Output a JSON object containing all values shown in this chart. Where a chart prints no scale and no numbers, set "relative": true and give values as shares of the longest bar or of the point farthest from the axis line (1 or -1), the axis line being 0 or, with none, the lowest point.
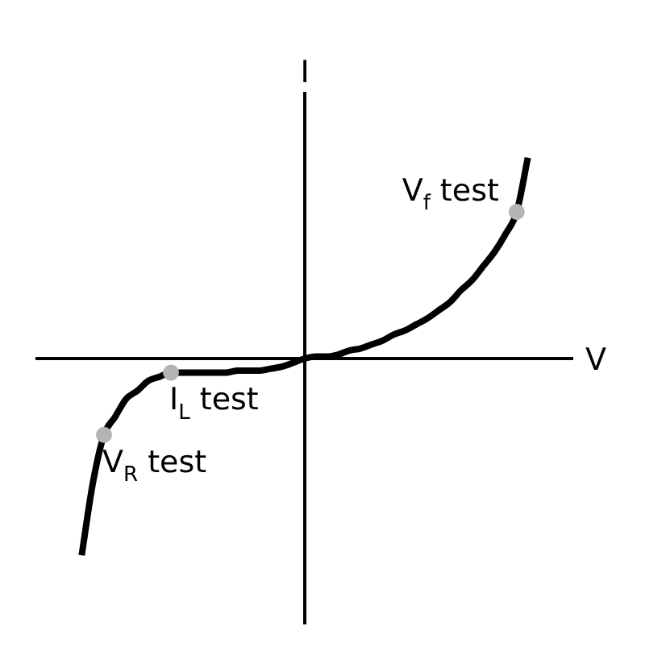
{
  "chart_data": {
    "type": "line",
    "relative": true,
    "xlabel": "V",
    "ylabel": "I",
    "categories": [
      null,
      null,
      null,
      null,
      null,
      null,
      null,
      null,
      null,
      null,
      null,
      null,
      null,
      null,
      null,
      null,
      null,
      null,
      null,
      null,
      null,
      null,
      null,
      null,
      null,
      null,
      null,
      null,
      null,
      null,
      null,
      null,
      null,
      null,
      null,
      null,
      null,
      null,
      null,
      null,
      null,
      null,
      null,
      null,
      null,
      null,
      null,
      null,
      null
    ],
    "series": [
      {
        "color": "#000000",
        "marker": "none",
        "values": [
          null,
          null,
          null,
          null,
          -0.98,
          -0.62,
          -0.38,
          -0.29,
          -0.2,
          -0.16,
          -0.11,
          -0.09,
          -0.07,
          -0.07,
          -0.07,
          -0.07,
          -0.07,
          -0.07,
          -0.06,
          -0.06,
          -0.06,
          -0.05,
          -0.04,
          -0.02,
          0,
          0.01,
          0.01,
          0.02,
          0.04,
          0.05,
          0.07,
          0.09,
          0.12,
          0.14,
          0.17,
          0.2,
          0.24,
          0.28,
          0.34,
          0.39,
          0.46,
          0.53,
          0.62,
          0.73,
          1,
          null,
          null,
          null,
          null
        ]
      },
      {
        "name": "V$_{f}$ test",
        "color": "#b4b4b4",
        "marker": "circle",
        "values": [
          null,
          null,
          null,
          null,
          null,
          null,
          null,
          null,
          null,
          null,
          null,
          null,
          null,
          null,
          null,
          null,
          null,
          null,
          null,
          null,
          null,
          null,
          null,
          null,
          null,
          null,
          null,
          null,
          null,
          null,
          null,
          null,
          null,
          null,
          null,
          null,
          null,
          null,
          null,
          null,
          null,
          null,
          null,
          0.73,
          null,
          null,
          null,
          null,
          null
        ]
      },
      {
        "name": "I$_{L}$ test",
        "color": "#b4b4b4",
        "marker": "circle",
        "values": [
          null,
          null,
          null,
          null,
          null,
          null,
          null,
          null,
          null,
          null,
          null,
          null,
          -0.07,
          null,
          null,
          null,
          null,
          null,
          null,
          null,
          null,
          null,
          null,
          null,
          null,
          null,
          null,
          null,
          null,
          null,
          null,
          null,
          null,
          null,
          null,
          null,
          null,
          null,
          null,
          null,
          null,
          null,
          null,
          null,
          null,
          null,
          null,
          null,
          null
        ]
      },
      {
        "name": "V$_{R}$ test",
        "color": "#b4b4b4",
        "marker": "circle",
        "values": [
          null,
          null,
          null,
          null,
          null,
          null,
          -0.38,
          null,
          null,
          null,
          null,
          null,
          null,
          null,
          null,
          null,
          null,
          null,
          null,
          null,
          null,
          null,
          null,
          null,
          null,
          null,
          null,
          null,
          null,
          null,
          null,
          null,
          null,
          null,
          null,
          null,
          null,
          null,
          null,
          null,
          null,
          null,
          null,
          null,
          null,
          null,
          null,
          null,
          null
        ]
      }
    ]
  }
}
